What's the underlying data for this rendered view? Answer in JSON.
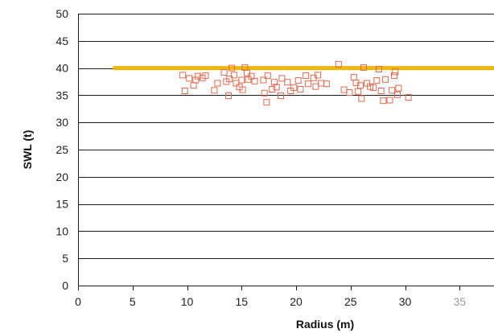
{
  "chart_data": {
    "type": "scatter",
    "title": "",
    "xlabel": "Radius (m)",
    "ylabel": "SWL (t)",
    "xlim": [
      0,
      38
    ],
    "ylim": [
      0,
      50
    ],
    "xticks": [
      0,
      5,
      10,
      15,
      20,
      25,
      30,
      35
    ],
    "yticks": [
      0,
      5,
      10,
      15,
      20,
      25,
      30,
      35,
      40,
      45,
      50
    ],
    "grid": "horizontal",
    "limit_line": {
      "y": 40,
      "x_start": 3.2,
      "color": "#f2b705"
    },
    "series": [
      {
        "color": "#e06a4e",
        "marker": "open-square",
        "points": [
          [
            9.6,
            38.7
          ],
          [
            9.8,
            35.8
          ],
          [
            10.2,
            38.1
          ],
          [
            10.6,
            36.8
          ],
          [
            10.8,
            37.8
          ],
          [
            11.0,
            38.5
          ],
          [
            11.4,
            38.2
          ],
          [
            11.7,
            38.6
          ],
          [
            12.5,
            35.9
          ],
          [
            12.8,
            37.2
          ],
          [
            13.4,
            39.2
          ],
          [
            13.6,
            37.5
          ],
          [
            13.8,
            34.9
          ],
          [
            13.9,
            38.0
          ],
          [
            14.1,
            40.0
          ],
          [
            14.3,
            38.7
          ],
          [
            14.5,
            37.2
          ],
          [
            14.8,
            36.5
          ],
          [
            15.0,
            37.8
          ],
          [
            15.1,
            36.0
          ],
          [
            15.3,
            40.1
          ],
          [
            15.5,
            39.1
          ],
          [
            15.6,
            37.9
          ],
          [
            15.9,
            38.5
          ],
          [
            16.2,
            37.6
          ],
          [
            17.0,
            37.8
          ],
          [
            17.1,
            35.4
          ],
          [
            17.3,
            33.7
          ],
          [
            17.4,
            38.6
          ],
          [
            17.8,
            36.1
          ],
          [
            18.0,
            37.4
          ],
          [
            18.2,
            36.5
          ],
          [
            18.6,
            34.9
          ],
          [
            18.7,
            38.1
          ],
          [
            19.2,
            37.4
          ],
          [
            19.5,
            35.8
          ],
          [
            19.8,
            36.4
          ],
          [
            20.2,
            37.7
          ],
          [
            20.4,
            36.1
          ],
          [
            20.9,
            38.6
          ],
          [
            21.1,
            37.1
          ],
          [
            21.6,
            38.2
          ],
          [
            21.8,
            36.6
          ],
          [
            22.0,
            38.7
          ],
          [
            22.3,
            37.2
          ],
          [
            22.8,
            37.1
          ],
          [
            23.9,
            40.7
          ],
          [
            24.4,
            36.0
          ],
          [
            24.9,
            35.5
          ],
          [
            25.3,
            38.3
          ],
          [
            25.5,
            37.3
          ],
          [
            25.7,
            35.7
          ],
          [
            25.9,
            36.8
          ],
          [
            26.0,
            34.4
          ],
          [
            26.2,
            40.1
          ],
          [
            26.5,
            37.2
          ],
          [
            26.8,
            36.6
          ],
          [
            27.1,
            36.4
          ],
          [
            27.4,
            37.7
          ],
          [
            27.6,
            39.8
          ],
          [
            27.8,
            35.8
          ],
          [
            28.0,
            34.0
          ],
          [
            28.2,
            37.9
          ],
          [
            28.6,
            34.1
          ],
          [
            28.8,
            35.9
          ],
          [
            29.0,
            38.6
          ],
          [
            29.1,
            39.3
          ],
          [
            29.3,
            35.1
          ],
          [
            29.4,
            36.3
          ],
          [
            30.3,
            34.6
          ]
        ]
      }
    ]
  }
}
